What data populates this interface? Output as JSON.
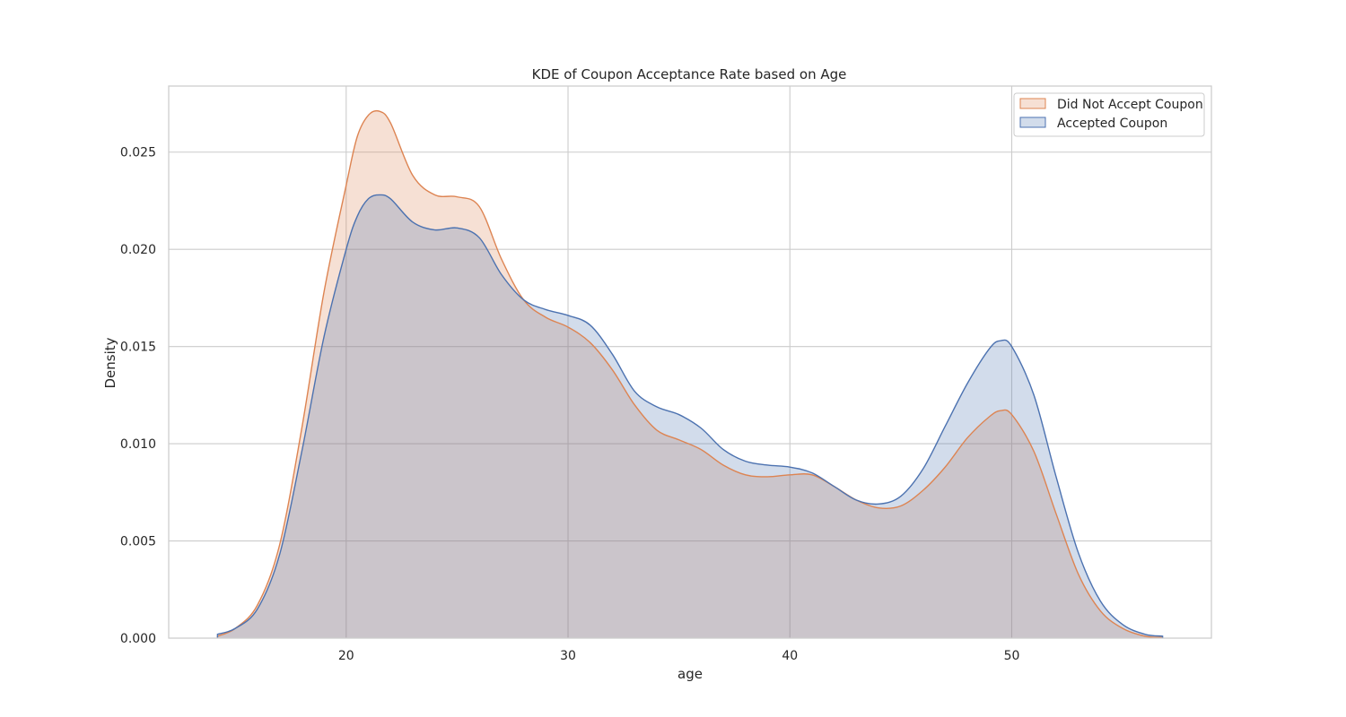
{
  "chart_data": {
    "type": "area",
    "title": "KDE of Coupon Acceptance Rate based on Age",
    "xlabel": "age",
    "ylabel": "Density",
    "xlim": [
      12,
      59
    ],
    "ylim": [
      0,
      0.0284
    ],
    "xticks": [
      20,
      30,
      40,
      50
    ],
    "xtick_labels": [
      "20",
      "30",
      "40",
      "50"
    ],
    "yticks": [
      0,
      0.005,
      0.01,
      0.015,
      0.02,
      0.025
    ],
    "ytick_labels": [
      "0.000",
      "0.005",
      "0.010",
      "0.015",
      "0.020",
      "0.025"
    ],
    "grid": true,
    "legend_position": "top-right",
    "series": [
      {
        "name": "Did Not Accept Coupon",
        "color": "#dd8452",
        "x": [
          14.2,
          15,
          16,
          17,
          18,
          19,
          20,
          20.5,
          21,
          21.5,
          22,
          23,
          24,
          25,
          26,
          27,
          28,
          29,
          30,
          31,
          32,
          33,
          34,
          35,
          36,
          37,
          38,
          39,
          40,
          41,
          42,
          43,
          44,
          45,
          46,
          47,
          48,
          49,
          49.5,
          50,
          51,
          52,
          53,
          54,
          55,
          56,
          56.8
        ],
        "y": [
          0.0001,
          0.0005,
          0.0017,
          0.0048,
          0.0108,
          0.0178,
          0.0233,
          0.0258,
          0.0269,
          0.0271,
          0.0265,
          0.0238,
          0.0228,
          0.0227,
          0.0222,
          0.0195,
          0.0174,
          0.0165,
          0.016,
          0.0152,
          0.0138,
          0.012,
          0.0107,
          0.0102,
          0.0097,
          0.0089,
          0.0084,
          0.0083,
          0.0084,
          0.0084,
          0.0078,
          0.0071,
          0.0067,
          0.0068,
          0.0076,
          0.0088,
          0.0103,
          0.0114,
          0.0117,
          0.0115,
          0.0096,
          0.0064,
          0.0033,
          0.0014,
          0.0005,
          0.0001,
          3e-05
        ]
      },
      {
        "name": "Accepted Coupon",
        "color": "#4c72b0",
        "x": [
          14.2,
          15,
          16,
          17,
          18,
          19,
          20,
          20.5,
          21,
          21.5,
          22,
          23,
          24,
          25,
          26,
          27,
          28,
          29,
          30,
          31,
          32,
          33,
          34,
          35,
          36,
          37,
          38,
          39,
          40,
          41,
          42,
          43,
          44,
          45,
          46,
          47,
          48,
          49,
          49.5,
          50,
          51,
          52,
          53,
          54,
          55,
          56,
          56.8
        ],
        "y": [
          0.0002,
          0.0005,
          0.0015,
          0.0043,
          0.0096,
          0.0155,
          0.02,
          0.0217,
          0.0226,
          0.0228,
          0.0226,
          0.0214,
          0.021,
          0.0211,
          0.0206,
          0.0187,
          0.0174,
          0.0169,
          0.0166,
          0.0161,
          0.0146,
          0.0127,
          0.0119,
          0.0115,
          0.0108,
          0.0097,
          0.0091,
          0.0089,
          0.0088,
          0.0085,
          0.0078,
          0.0071,
          0.0069,
          0.0073,
          0.0087,
          0.0109,
          0.0131,
          0.0149,
          0.0153,
          0.015,
          0.0125,
          0.0083,
          0.0044,
          0.0019,
          0.0007,
          0.0002,
          0.0001
        ]
      }
    ]
  }
}
